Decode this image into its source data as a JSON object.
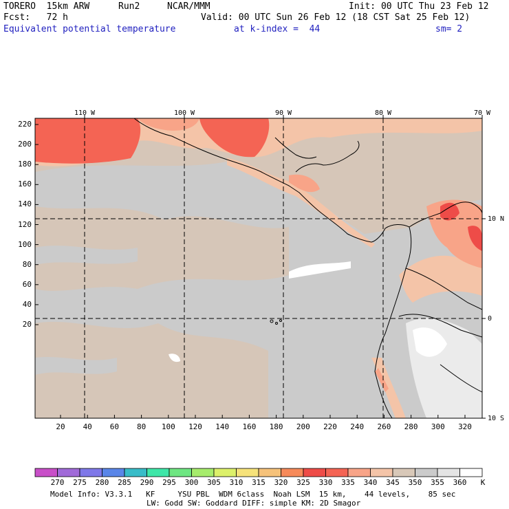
{
  "header": {
    "model": "TORERO  15km ARW",
    "run": "Run2",
    "org": "NCAR/MMM",
    "init": "Init: 00 UTC Thu 23 Feb 12",
    "fcst": "Fcst:   72 h",
    "valid": "Valid: 00 UTC Sun 26 Feb 12 (18 CST Sat 25 Feb 12)",
    "field": "Equivalent potential temperature",
    "level": "at k-index =  44",
    "smooth": "sm= 2"
  },
  "map": {
    "lon_labels": [
      "110 W",
      "100 W",
      "90 W",
      "80 W",
      "70 W"
    ],
    "lat_labels": [
      "10 N",
      "0",
      "10 S"
    ],
    "y_ticks": [
      "220",
      "200",
      "180",
      "160",
      "140",
      "120",
      "100",
      "80",
      "60",
      "40",
      "20"
    ],
    "x_ticks": [
      "20",
      "40",
      "60",
      "80",
      "100",
      "120",
      "140",
      "160",
      "180",
      "200",
      "220",
      "240",
      "260",
      "280",
      "300",
      "320"
    ]
  },
  "colorbar": {
    "labels": [
      "270",
      "275",
      "280",
      "285",
      "290",
      "295",
      "300",
      "305",
      "310",
      "315",
      "320",
      "325",
      "330",
      "335",
      "340",
      "345",
      "350",
      "355",
      "360"
    ],
    "unit": "K",
    "colors": [
      "#c84fc8",
      "#a06ad8",
      "#7f78e8",
      "#5a86e8",
      "#38bcc8",
      "#3ee6a8",
      "#6ee682",
      "#a6ec6c",
      "#dcf06a",
      "#f6e27a",
      "#f6c27a",
      "#f68a5a",
      "#ee4c48",
      "#f46454",
      "#f8a488",
      "#f4c4a8",
      "#d8c8b8",
      "#cbcbcb",
      "#e4e4e4",
      "#ffffff"
    ]
  },
  "footer": {
    "line1": "Model Info: V3.3.1   KF     YSU PBL  WDM 6class  Noah LSM  15 km,    44 levels,    85 sec",
    "line2": "LW: Godd SW: Goddard DIFF: simple KM: 2D Smagor"
  }
}
